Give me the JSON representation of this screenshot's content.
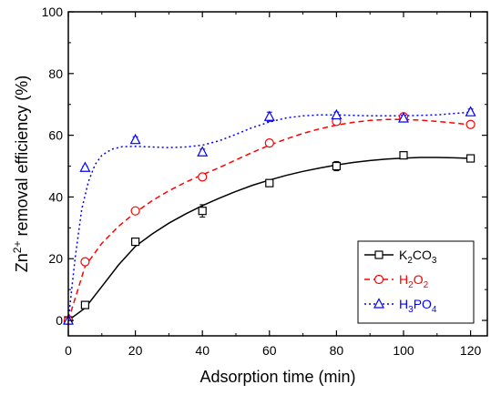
{
  "chart_data": {
    "type": "scatter",
    "title": "",
    "xlabel": "Adsorption time (min)",
    "ylabel": {
      "prefix": "Zn",
      "sup": "2+",
      "suffix": " removal efficiency (%)"
    },
    "xlim": [
      0,
      125
    ],
    "ylim": [
      -5,
      100
    ],
    "x_ticks": [
      0,
      20,
      40,
      60,
      80,
      100,
      120
    ],
    "y_ticks": [
      0,
      20,
      40,
      60,
      80,
      100
    ],
    "grid": false,
    "legend_position": "bottom-right",
    "x": [
      0,
      5,
      20,
      40,
      60,
      80,
      100,
      120
    ],
    "series": [
      {
        "key": "k2co3",
        "name": "K2CO3",
        "name_parts": [
          [
            "K",
            ""
          ],
          [
            "2",
            "sub"
          ],
          [
            "CO",
            ""
          ],
          [
            "3",
            "sub"
          ]
        ],
        "color": "#000000",
        "marker": "square",
        "line_style": "solid",
        "values": [
          0,
          5,
          25.5,
          35.5,
          44.5,
          50,
          53.5,
          52.5
        ],
        "errors": [
          0,
          0,
          0.5,
          2,
          0.5,
          1.5,
          1,
          0.5
        ],
        "curve": [
          [
            0,
            0
          ],
          [
            5,
            4
          ],
          [
            10,
            11
          ],
          [
            15,
            18
          ],
          [
            20,
            24
          ],
          [
            25,
            28
          ],
          [
            30,
            31.5
          ],
          [
            35,
            34.5
          ],
          [
            40,
            37.2
          ],
          [
            45,
            39.6
          ],
          [
            50,
            41.8
          ],
          [
            55,
            43.8
          ],
          [
            60,
            45.5
          ],
          [
            65,
            47
          ],
          [
            70,
            48.3
          ],
          [
            75,
            49.4
          ],
          [
            80,
            50.4
          ],
          [
            85,
            51.2
          ],
          [
            90,
            51.8
          ],
          [
            95,
            52.3
          ],
          [
            100,
            52.6
          ],
          [
            105,
            52.8
          ],
          [
            110,
            52.8
          ],
          [
            115,
            52.7
          ],
          [
            120,
            52.5
          ]
        ]
      },
      {
        "key": "h2o2",
        "name": "H2O2",
        "name_parts": [
          [
            "H",
            ""
          ],
          [
            "2",
            "sub"
          ],
          [
            "O",
            ""
          ],
          [
            "2",
            "sub"
          ]
        ],
        "color": "#ff0000",
        "marker": "circle",
        "line_style": "dashed",
        "values": [
          0,
          19,
          35.5,
          46.5,
          57.5,
          64.5,
          66,
          63.5
        ],
        "errors": [
          0,
          0.5,
          0.5,
          0.5,
          0.5,
          1,
          0.5,
          0.5
        ],
        "curve": [
          [
            0,
            0
          ],
          [
            5,
            17.5
          ],
          [
            10,
            25
          ],
          [
            15,
            30.5
          ],
          [
            20,
            35
          ],
          [
            25,
            38.8
          ],
          [
            30,
            42
          ],
          [
            35,
            44.8
          ],
          [
            40,
            47.2
          ],
          [
            45,
            49.5
          ],
          [
            50,
            52
          ],
          [
            55,
            54.5
          ],
          [
            60,
            56.8
          ],
          [
            65,
            58.8
          ],
          [
            70,
            60.6
          ],
          [
            75,
            62.1
          ],
          [
            80,
            63.3
          ],
          [
            85,
            64.2
          ],
          [
            90,
            64.8
          ],
          [
            95,
            65.1
          ],
          [
            100,
            65.1
          ],
          [
            105,
            64.9
          ],
          [
            110,
            64.5
          ],
          [
            115,
            64
          ],
          [
            120,
            63.4
          ]
        ]
      },
      {
        "key": "h3po4",
        "name": "H3PO4",
        "name_parts": [
          [
            "H",
            ""
          ],
          [
            "3",
            "sub"
          ],
          [
            "PO",
            ""
          ],
          [
            "4",
            "sub"
          ]
        ],
        "color": "#0000ff",
        "marker": "triangle",
        "line_style": "dotted",
        "values": [
          0,
          49.5,
          58.5,
          54.5,
          66,
          66.5,
          65.5,
          67.5
        ],
        "errors": [
          0,
          0.5,
          1,
          1,
          1.5,
          1,
          1,
          1
        ],
        "curve": [
          [
            0,
            0
          ],
          [
            2,
            20
          ],
          [
            4,
            36
          ],
          [
            6,
            45
          ],
          [
            8,
            50.5
          ],
          [
            10,
            53.5
          ],
          [
            13,
            55.5
          ],
          [
            16,
            56.3
          ],
          [
            20,
            56.4
          ],
          [
            25,
            56.2
          ],
          [
            30,
            56
          ],
          [
            35,
            56.2
          ],
          [
            40,
            56.8
          ],
          [
            45,
            58.2
          ],
          [
            50,
            60.3
          ],
          [
            55,
            62.5
          ],
          [
            60,
            64.3
          ],
          [
            65,
            65.6
          ],
          [
            70,
            66.3
          ],
          [
            75,
            66.6
          ],
          [
            80,
            66.6
          ],
          [
            90,
            66.3
          ],
          [
            100,
            66.3
          ],
          [
            110,
            66.6
          ],
          [
            120,
            67.5
          ]
        ]
      }
    ]
  }
}
